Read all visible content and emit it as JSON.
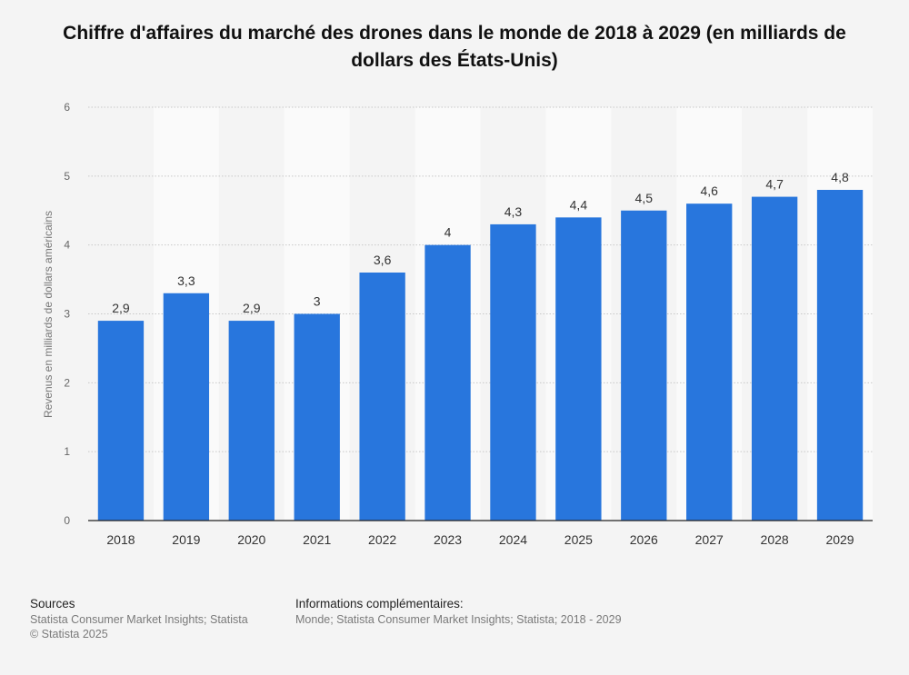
{
  "title": "Chiffre d'affaires du marché des drones dans le monde de 2018 à 2029 (en milliards de dollars des États-Unis)",
  "chart_data": {
    "type": "bar",
    "categories": [
      "2018",
      "2019",
      "2020",
      "2021",
      "2022",
      "2023",
      "2024",
      "2025",
      "2026",
      "2027",
      "2028",
      "2029"
    ],
    "values": [
      2.9,
      3.3,
      2.9,
      3.0,
      3.6,
      4.0,
      4.3,
      4.4,
      4.5,
      4.6,
      4.7,
      4.8
    ],
    "value_labels": [
      "2,9",
      "3,3",
      "2,9",
      "3",
      "3,6",
      "4",
      "4,3",
      "4,4",
      "4,5",
      "4,6",
      "4,7",
      "4,8"
    ],
    "yticks": [
      "0",
      "1",
      "2",
      "3",
      "4",
      "5",
      "6"
    ],
    "ylabel": "Revenus en milliards de dollars américains",
    "xlabel": "",
    "ylim": [
      0,
      6
    ],
    "grid": true,
    "bar_color": "#2876dd"
  },
  "footer": {
    "sources_title": "Sources",
    "sources_line1": "Statista Consumer Market Insights; Statista",
    "sources_line2": "© Statista 2025",
    "info_title": "Informations complémentaires:",
    "info_text": "Monde; Statista Consumer Market Insights; Statista; 2018 - 2029"
  }
}
